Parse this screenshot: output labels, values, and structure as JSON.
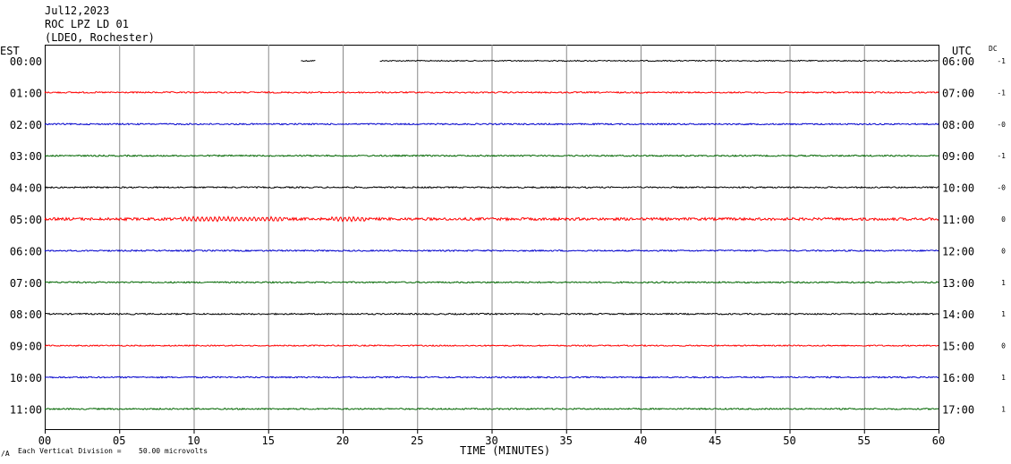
{
  "header": {
    "date": "Jul12,2023",
    "station": "ROC LPZ LD 01",
    "network": "(LDEO, Rochester)"
  },
  "chart_data": {
    "type": "line",
    "title": "ROC LPZ LD 01",
    "left_axis_title": "EST",
    "right_axis_title": "UTC",
    "dc_title": "DC",
    "xlabel": "TIME (MINUTES)",
    "xlim": [
      0,
      60
    ],
    "x_ticks": [
      "00",
      "05",
      "10",
      "15",
      "20",
      "25",
      "30",
      "35",
      "40",
      "45",
      "50",
      "55",
      "60"
    ],
    "grid": true,
    "rows": [
      {
        "est": "00:00",
        "utc": "06:00",
        "dc": "-1",
        "color": "#000000",
        "amplitude": 0.6,
        "segments": [
          [
            17.2,
            18.2
          ],
          [
            22.5,
            60
          ]
        ]
      },
      {
        "est": "01:00",
        "utc": "07:00",
        "dc": "-1",
        "color": "#ff0000",
        "amplitude": 0.8,
        "segments": [
          [
            0,
            60
          ]
        ]
      },
      {
        "est": "02:00",
        "utc": "08:00",
        "dc": "-0",
        "color": "#0000cc",
        "amplitude": 0.8,
        "segments": [
          [
            0,
            60
          ]
        ]
      },
      {
        "est": "03:00",
        "utc": "09:00",
        "dc": "-1",
        "color": "#006600",
        "amplitude": 0.8,
        "segments": [
          [
            0,
            60
          ]
        ]
      },
      {
        "est": "04:00",
        "utc": "10:00",
        "dc": "-0",
        "color": "#000000",
        "amplitude": 0.8,
        "segments": [
          [
            0,
            60
          ]
        ]
      },
      {
        "est": "05:00",
        "utc": "11:00",
        "dc": "0",
        "color": "#ff0000",
        "amplitude": 1.5,
        "segments": [
          [
            0,
            60
          ]
        ]
      },
      {
        "est": "06:00",
        "utc": "12:00",
        "dc": "0",
        "color": "#0000cc",
        "amplitude": 0.8,
        "segments": [
          [
            0,
            60
          ]
        ]
      },
      {
        "est": "07:00",
        "utc": "13:00",
        "dc": "1",
        "color": "#006600",
        "amplitude": 0.8,
        "segments": [
          [
            0,
            60
          ]
        ]
      },
      {
        "est": "08:00",
        "utc": "14:00",
        "dc": "1",
        "color": "#000000",
        "amplitude": 0.8,
        "segments": [
          [
            0,
            60
          ]
        ]
      },
      {
        "est": "09:00",
        "utc": "15:00",
        "dc": "0",
        "color": "#ff0000",
        "amplitude": 0.7,
        "segments": [
          [
            0,
            60
          ]
        ]
      },
      {
        "est": "10:00",
        "utc": "16:00",
        "dc": "1",
        "color": "#0000cc",
        "amplitude": 0.8,
        "segments": [
          [
            0,
            60
          ]
        ]
      },
      {
        "est": "11:00",
        "utc": "17:00",
        "dc": "1",
        "color": "#006600",
        "amplitude": 0.8,
        "segments": [
          [
            0,
            60
          ]
        ]
      }
    ]
  },
  "footer": {
    "scale_prefix": "Each Vertical Division =",
    "scale_value": "50.00 microvolts",
    "corner_mark": "/A"
  }
}
